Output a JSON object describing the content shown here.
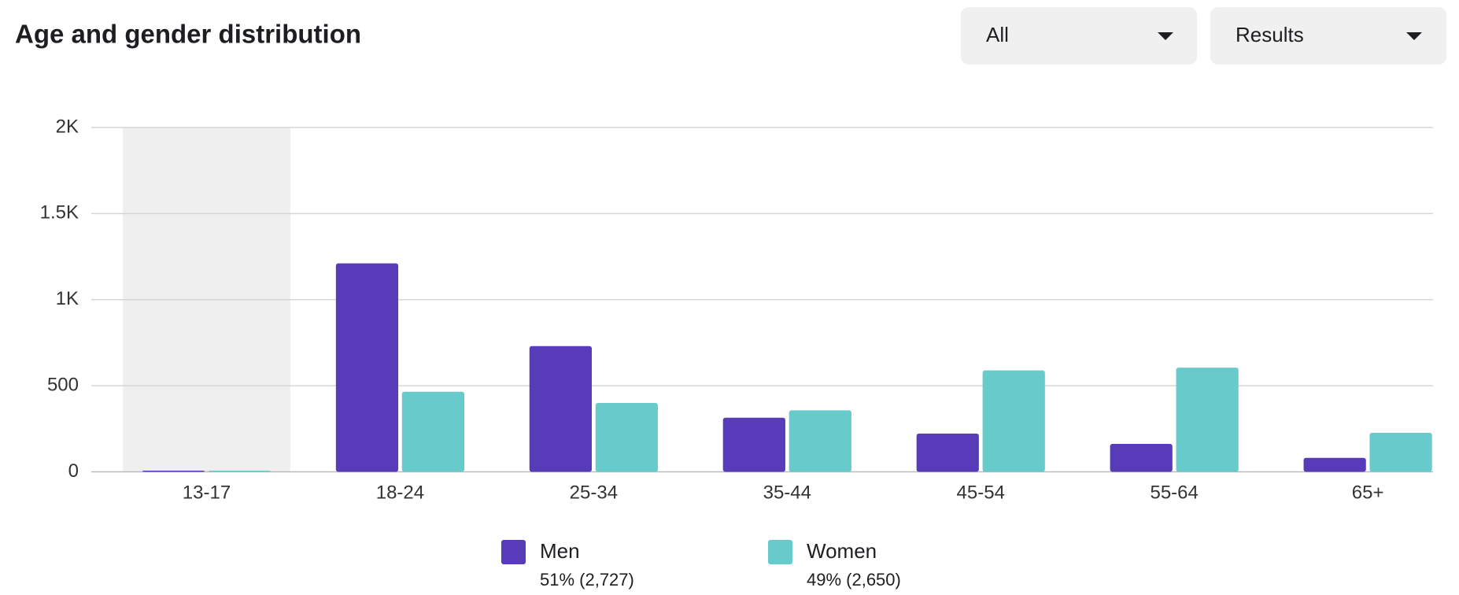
{
  "chart_data": {
    "type": "bar",
    "title": "Age and gender distribution",
    "controls": [
      "All",
      "Results"
    ],
    "categories": [
      "13-17",
      "18-24",
      "25-34",
      "35-44",
      "45-54",
      "55-64",
      "65+"
    ],
    "highlight": "13-17",
    "series": [
      {
        "name": "Men",
        "color": "#573bb8",
        "summary": "51% (2,727)",
        "values": [
          7,
          1211,
          730,
          314,
          222,
          162,
          81
        ]
      },
      {
        "name": "Women",
        "color": "#67cacb",
        "summary": "49% (2,650)",
        "values": [
          7,
          465,
          400,
          357,
          589,
          605,
          227
        ]
      }
    ],
    "ylim": [
      0,
      2000
    ],
    "yticks": [
      0,
      500,
      {
        "value": 1000,
        "label": "1K"
      },
      {
        "value": 1500,
        "label": "1.5K"
      },
      {
        "value": 2000,
        "label": "2K"
      }
    ],
    "grid": true
  }
}
